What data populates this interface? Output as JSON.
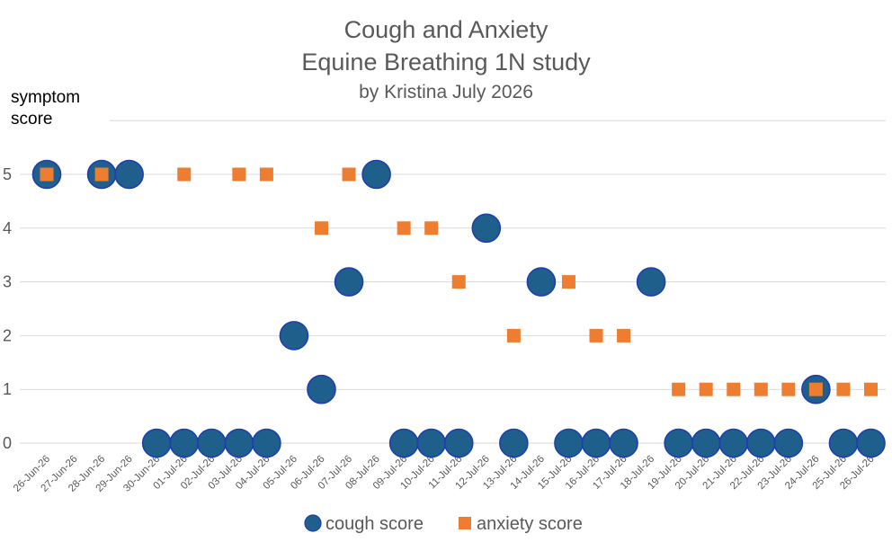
{
  "chart_data": {
    "type": "scatter",
    "title": [
      "Cough and Anxiety",
      "Equine Breathing 1N study",
      "by Kristina July 2026"
    ],
    "ylabel": [
      "symptom",
      "score"
    ],
    "ylim": [
      0,
      5
    ],
    "yticks": [
      "0",
      "1",
      "2",
      "3",
      "4",
      "5"
    ],
    "grid": "horizontal",
    "legend_position": "bottom",
    "categories": [
      "26-Jun-26",
      "27-Jun-26",
      "28-Jun-26",
      "29-Jun-26",
      "30-Jun-26",
      "01-Jul-26",
      "02-Jul-26",
      "03-Jul-26",
      "04-Jul-26",
      "05-Jul-26",
      "06-Jul-26",
      "07-Jul-26",
      "08-Jul-26",
      "09-Jul-26",
      "10-Jul-26",
      "11-Jul-26",
      "12-Jul-26",
      "13-Jul-26",
      "14-Jul-26",
      "15-Jul-26",
      "16-Jul-26",
      "17-Jul-26",
      "18-Jul-26",
      "19-Jul-26",
      "20-Jul-26",
      "21-Jul-26",
      "22-Jul-26",
      "23-Jul-26",
      "24-Jul-26",
      "25-Jul-26",
      "26-Jul-26"
    ],
    "series": [
      {
        "name": "cough score",
        "color": "#1F5F8B",
        "marker": "circle",
        "values": [
          5,
          null,
          5,
          5,
          0,
          0,
          0,
          0,
          0,
          2,
          1,
          3,
          5,
          0,
          0,
          0,
          4,
          0,
          3,
          0,
          0,
          0,
          3,
          0,
          0,
          0,
          0,
          0,
          1,
          0,
          0
        ]
      },
      {
        "name": "anxiety score",
        "color": "#ED7D31",
        "marker": "square",
        "values": [
          5,
          null,
          5,
          null,
          null,
          5,
          null,
          5,
          5,
          null,
          4,
          5,
          null,
          4,
          4,
          3,
          null,
          2,
          null,
          3,
          2,
          2,
          null,
          1,
          1,
          1,
          1,
          1,
          1,
          1,
          1
        ]
      }
    ]
  }
}
